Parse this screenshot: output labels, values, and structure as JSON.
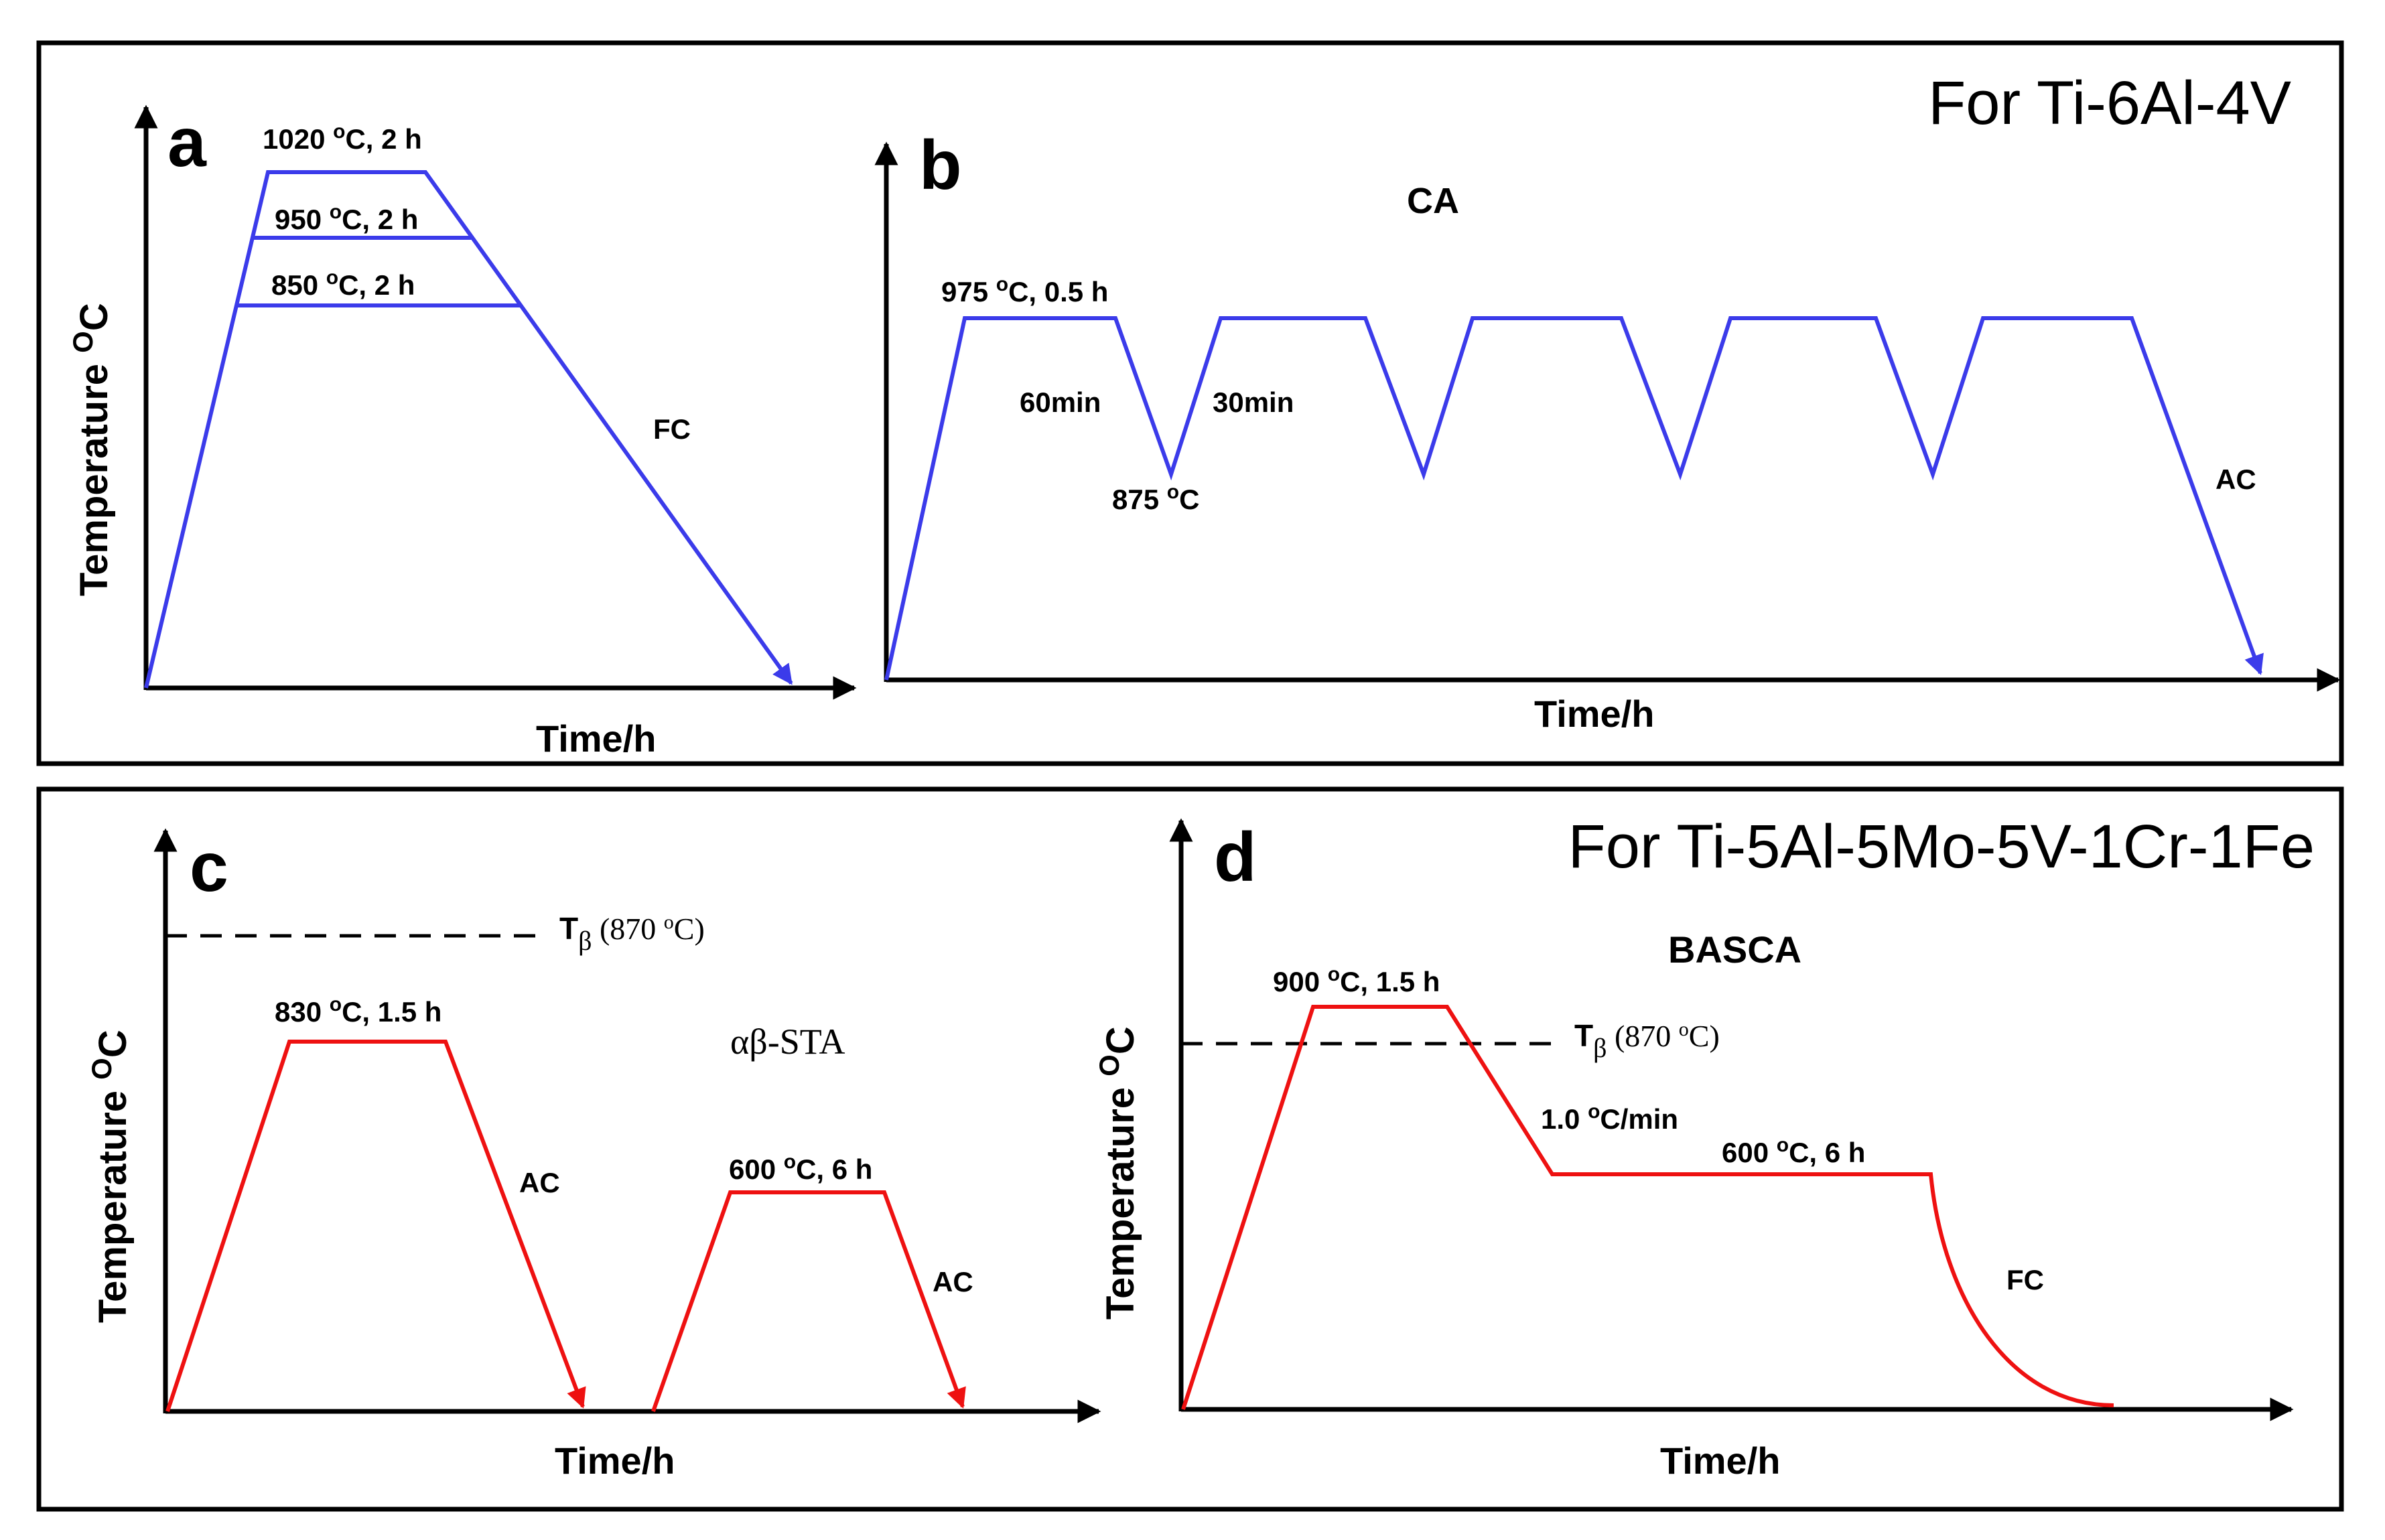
{
  "titles": {
    "top": "For Ti-6Al-4V",
    "bottom": "For Ti-5Al-5Mo-5V-1Cr-1Fe"
  },
  "colors": {
    "ti64_curve": "#3b3bea",
    "ti55511_curve": "#ee1111",
    "axis": "#000000",
    "frame": "#000000"
  },
  "panels": {
    "a": {
      "letter": "a",
      "y_label": "Temperature ",
      "y_unit_sup": "O",
      "y_unit": "C",
      "x_label": "Time/h",
      "holds": [
        {
          "temp": "1020",
          "deg": "o",
          "rest": "C, 2 h"
        },
        {
          "temp": "950",
          "deg": "o",
          "rest": "C, 2 h"
        },
        {
          "temp": "850",
          "deg": "o",
          "rest": "C, 2 h"
        }
      ],
      "cooling": "FC"
    },
    "b": {
      "letter": "b",
      "title": "CA",
      "x_label": "Time/h",
      "hold": {
        "temp": "975",
        "deg": "o",
        "rest": "C, 0.5 h"
      },
      "down_time": "60min",
      "up_time": "30min",
      "low": {
        "temp": "875",
        "deg": "o",
        "rest": "C"
      },
      "cooling": "AC",
      "cycles": 5
    },
    "c": {
      "letter": "c",
      "y_label": "Temperature ",
      "y_unit_sup": "O",
      "y_unit": "C",
      "x_label": "Time/h",
      "title": "αβ-STA",
      "tbeta": {
        "t": "T",
        "sub": "β",
        "open": " (870 ",
        "deg": "o",
        "close": "C)"
      },
      "step1": {
        "temp": "830",
        "deg": "o",
        "rest": "C, 1.5 h"
      },
      "step1_cooling": "AC",
      "step2": {
        "temp": "600",
        "deg": "o",
        "rest": "C, 6 h"
      },
      "step2_cooling": "AC"
    },
    "d": {
      "letter": "d",
      "y_label": "Temperature ",
      "y_unit_sup": "O",
      "y_unit": "C",
      "x_label": "Time/h",
      "title": "BASCA",
      "tbeta": {
        "t": "T",
        "sub": "β",
        "open": " (870 ",
        "deg": "o",
        "close": "C)"
      },
      "step1": {
        "temp": "900",
        "deg": "o",
        "rest": "C, 1.5 h"
      },
      "rate": {
        "value": "1.0",
        "deg": "o",
        "rest": "C/min"
      },
      "step2": {
        "temp": "600",
        "deg": "o",
        "rest": "C, 6 h"
      },
      "cooling": "FC"
    }
  }
}
